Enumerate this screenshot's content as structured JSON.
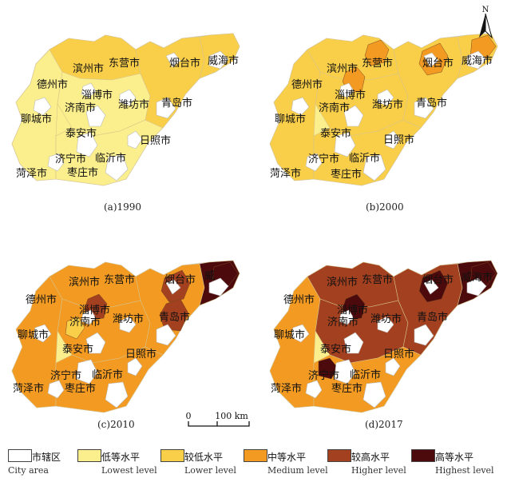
{
  "panels": [
    {
      "caption": "(a)1990",
      "zones": {
        "west": "lowest",
        "center": "lowest",
        "south": "lowest",
        "north": "lower",
        "east": "lower",
        "tip": "lower",
        "hotspots": []
      }
    },
    {
      "caption": "(b)2000",
      "zones": {
        "west": "lower",
        "center": "lower",
        "south": "lower",
        "north": "lower",
        "east": "lower",
        "tip": "lower",
        "hotspots": [
          {
            "at": "dongying",
            "level": "medium"
          },
          {
            "at": "yantai",
            "level": "medium"
          },
          {
            "at": "weihai",
            "level": "medium"
          },
          {
            "at": "zibo",
            "level": "medium"
          }
        ]
      }
    },
    {
      "caption": "(c)2010",
      "zones": {
        "west": "medium",
        "center": "medium",
        "south": "medium",
        "north": "medium",
        "east": "medium",
        "tip": "highest",
        "hotspots": [
          {
            "at": "yantai",
            "level": "higher"
          },
          {
            "at": "zibo",
            "level": "higher"
          },
          {
            "at": "qingdao",
            "level": "higher"
          },
          {
            "at": "jinan",
            "level": "lower"
          },
          {
            "at": "weihai",
            "level": "highest"
          }
        ]
      }
    },
    {
      "caption": "(d)2017",
      "zones": {
        "west": "medium",
        "center": "higher",
        "south": "medium",
        "north": "higher",
        "east": "higher",
        "tip": "highest",
        "hotspots": [
          {
            "at": "yantai",
            "level": "highest"
          },
          {
            "at": "zibo",
            "level": "highest"
          },
          {
            "at": "jining",
            "level": "highest"
          },
          {
            "at": "weihai",
            "level": "highest"
          }
        ]
      }
    }
  ],
  "cities": {
    "binzhou": "滨州市",
    "dongying": "东营市",
    "yantai": "烟台市",
    "weihai": "威海市",
    "dezhou": "德州市",
    "zibo": "淄博市",
    "weifang": "潍坊市",
    "qingdao": "青岛市",
    "jinan": "济南市",
    "liaocheng": "聊城市",
    "taian": "泰安市",
    "rizhao": "日照市",
    "jining": "济宁市",
    "linyi": "临沂市",
    "heze": "菏泽市",
    "zaozhuang": "枣庄市"
  },
  "cities_c": {
    "weihai": "威"
  },
  "scale": {
    "zero": "0",
    "distance": "100 km"
  },
  "north": "N",
  "colors": {
    "city_area": "#ffffff",
    "lowest": "#fbee8c",
    "lower": "#f9cf4a",
    "medium": "#f29a22",
    "higher": "#a2401f",
    "highest": "#4d0a0c",
    "outline": "#cccccc"
  },
  "legend": [
    {
      "key": "city_area",
      "cn": "市辖区",
      "en": "City area"
    },
    {
      "key": "lowest",
      "cn": "低等水平",
      "en": "Lowest level"
    },
    {
      "key": "lower",
      "cn": "较低水平",
      "en": "Lower level"
    },
    {
      "key": "medium",
      "cn": "中等水平",
      "en": "Medium level"
    },
    {
      "key": "higher",
      "cn": "较高水平",
      "en": "Higher level"
    },
    {
      "key": "highest",
      "cn": "高等水平",
      "en": "Highest level"
    }
  ]
}
